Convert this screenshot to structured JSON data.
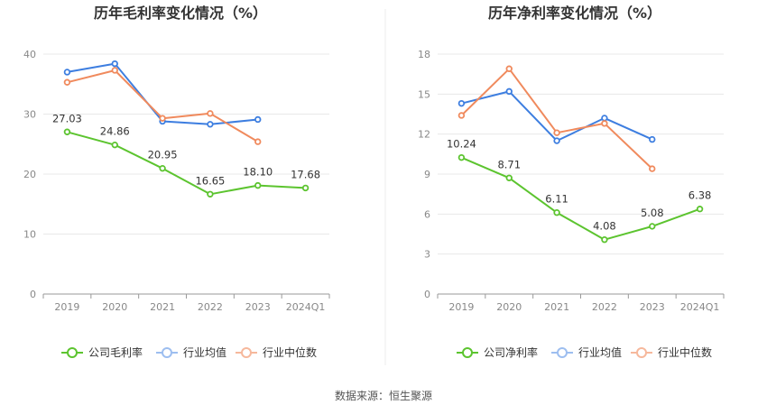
{
  "chart_data": [
    {
      "type": "line",
      "title": "历年毛利率变化情况（%）",
      "categories": [
        "2019",
        "2020",
        "2021",
        "2022",
        "2023",
        "2024Q1"
      ],
      "ylim": [
        0,
        40
      ],
      "yticks": [
        0,
        10,
        20,
        30,
        40
      ],
      "grid": true,
      "legend": "bottom",
      "series": [
        {
          "name": "公司毛利率",
          "color": "#5cc42f",
          "values": [
            27.03,
            24.86,
            20.95,
            16.65,
            18.1,
            17.68
          ],
          "labels": [
            "27.03",
            "24.86",
            "20.95",
            "16.65",
            "18.10",
            "17.68"
          ]
        },
        {
          "name": "行业均值",
          "color": "#3d7ee0",
          "values": [
            37.0,
            38.4,
            28.8,
            28.3,
            29.1,
            null
          ]
        },
        {
          "name": "行业中位数",
          "color": "#f08a5d",
          "values": [
            35.3,
            37.3,
            29.3,
            30.1,
            25.4,
            null
          ]
        }
      ]
    },
    {
      "type": "line",
      "title": "历年净利率变化情况（%）",
      "categories": [
        "2019",
        "2020",
        "2021",
        "2022",
        "2023",
        "2024Q1"
      ],
      "ylim": [
        0,
        18
      ],
      "yticks": [
        0,
        3,
        6,
        9,
        12,
        15,
        18
      ],
      "grid": true,
      "legend": "bottom",
      "series": [
        {
          "name": "公司净利率",
          "color": "#5cc42f",
          "values": [
            10.24,
            8.71,
            6.11,
            4.08,
            5.08,
            6.38
          ],
          "labels": [
            "10.24",
            "8.71",
            "6.11",
            "4.08",
            "5.08",
            "6.38"
          ]
        },
        {
          "name": "行业均值",
          "color": "#3d7ee0",
          "values": [
            14.3,
            15.2,
            11.5,
            13.2,
            11.6,
            null
          ]
        },
        {
          "name": "行业中位数",
          "color": "#f08a5d",
          "values": [
            13.4,
            16.9,
            12.1,
            12.8,
            9.4,
            null
          ]
        }
      ]
    }
  ],
  "footer": {
    "source": "数据来源：恒生聚源"
  }
}
